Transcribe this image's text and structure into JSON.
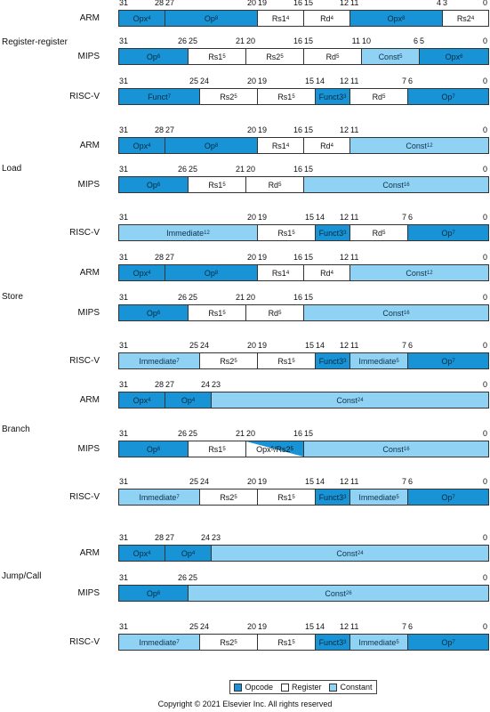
{
  "colors": {
    "opcode": "#1793d6",
    "register": "#ffffff",
    "constant": "#8fd2f4"
  },
  "groups": [
    {
      "name": "Register-register",
      "label_row": 0,
      "rows": [
        {
          "isa": "ARM",
          "bits": [
            31,
            28,
            27,
            20,
            19,
            16,
            15,
            12,
            11,
            4,
            3,
            0
          ],
          "fields": [
            {
              "from": 31,
              "to": 28,
              "name": "Opx",
              "sup": "4",
              "type": "opcode"
            },
            {
              "from": 27,
              "to": 20,
              "name": "Op",
              "sup": "8",
              "type": "opcode"
            },
            {
              "from": 19,
              "to": 16,
              "name": "Rs1",
              "sup": "4",
              "type": "register"
            },
            {
              "from": 15,
              "to": 12,
              "name": "Rd",
              "sup": "4",
              "type": "register"
            },
            {
              "from": 11,
              "to": 4,
              "name": "Opx",
              "sup": "8",
              "type": "opcode"
            },
            {
              "from": 3,
              "to": 0,
              "name": "Rs2",
              "sup": "4",
              "type": "register"
            }
          ]
        },
        {
          "isa": "MIPS",
          "bits": [
            31,
            26,
            25,
            21,
            20,
            16,
            15,
            11,
            10,
            6,
            5,
            0
          ],
          "fields": [
            {
              "from": 31,
              "to": 26,
              "name": "Op",
              "sup": "6",
              "type": "opcode"
            },
            {
              "from": 25,
              "to": 21,
              "name": "Rs1",
              "sup": "5",
              "type": "register"
            },
            {
              "from": 20,
              "to": 16,
              "name": "Rs2",
              "sup": "5",
              "type": "register"
            },
            {
              "from": 15,
              "to": 11,
              "name": "Rd",
              "sup": "5",
              "type": "register"
            },
            {
              "from": 10,
              "to": 6,
              "name": "Const",
              "sup": "5",
              "type": "constant"
            },
            {
              "from": 5,
              "to": 0,
              "name": "Opx",
              "sup": "6",
              "type": "opcode"
            }
          ]
        },
        {
          "isa": "RISC-V",
          "bits": [
            31,
            25,
            24,
            20,
            19,
            15,
            14,
            12,
            11,
            7,
            6,
            0
          ],
          "fields": [
            {
              "from": 31,
              "to": 25,
              "name": "Funct",
              "sup": "7",
              "type": "opcode"
            },
            {
              "from": 24,
              "to": 20,
              "name": "Rs2",
              "sup": "5",
              "type": "register"
            },
            {
              "from": 19,
              "to": 15,
              "name": "Rs1",
              "sup": "5",
              "type": "register"
            },
            {
              "from": 14,
              "to": 12,
              "name": "Funct3",
              "sup": "3",
              "type": "opcode"
            },
            {
              "from": 11,
              "to": 7,
              "name": "Rd",
              "sup": "5",
              "type": "register"
            },
            {
              "from": 6,
              "to": 0,
              "name": "Op",
              "sup": "7",
              "type": "opcode"
            }
          ]
        }
      ]
    },
    {
      "name": "Load",
      "label_row": 1,
      "rows": [
        {
          "isa": "ARM",
          "bits": [
            31,
            28,
            27,
            20,
            19,
            16,
            15,
            12,
            11,
            0
          ],
          "fields": [
            {
              "from": 31,
              "to": 28,
              "name": "Opx",
              "sup": "4",
              "type": "opcode"
            },
            {
              "from": 27,
              "to": 20,
              "name": "Op",
              "sup": "8",
              "type": "opcode"
            },
            {
              "from": 19,
              "to": 16,
              "name": "Rs1",
              "sup": "4",
              "type": "register"
            },
            {
              "from": 15,
              "to": 12,
              "name": "Rd",
              "sup": "4",
              "type": "register"
            },
            {
              "from": 11,
              "to": 0,
              "name": "Const",
              "sup": "12",
              "type": "constant"
            }
          ]
        },
        {
          "isa": "MIPS",
          "bits": [
            31,
            26,
            25,
            21,
            20,
            16,
            15,
            0
          ],
          "fields": [
            {
              "from": 31,
              "to": 26,
              "name": "Op",
              "sup": "6",
              "type": "opcode"
            },
            {
              "from": 25,
              "to": 21,
              "name": "Rs1",
              "sup": "5",
              "type": "register"
            },
            {
              "from": 20,
              "to": 16,
              "name": "Rd",
              "sup": "5",
              "type": "register"
            },
            {
              "from": 15,
              "to": 0,
              "name": "Const",
              "sup": "16",
              "type": "constant"
            }
          ]
        },
        {
          "isa": "RISC-V",
          "bits": [
            31,
            20,
            19,
            15,
            14,
            12,
            11,
            7,
            6,
            0
          ],
          "fields": [
            {
              "from": 31,
              "to": 20,
              "name": "Immediate",
              "sup": "12",
              "type": "constant"
            },
            {
              "from": 19,
              "to": 15,
              "name": "Rs1",
              "sup": "5",
              "type": "register"
            },
            {
              "from": 14,
              "to": 12,
              "name": "Funct3",
              "sup": "3",
              "type": "opcode"
            },
            {
              "from": 11,
              "to": 7,
              "name": "Rd",
              "sup": "5",
              "type": "register"
            },
            {
              "from": 6,
              "to": 0,
              "name": "Op",
              "sup": "7",
              "type": "opcode"
            }
          ]
        }
      ]
    },
    {
      "name": "Store",
      "label_row": 1,
      "rows": [
        {
          "isa": "ARM",
          "bits": [
            31,
            28,
            27,
            20,
            19,
            16,
            15,
            12,
            11,
            0
          ],
          "fields": [
            {
              "from": 31,
              "to": 28,
              "name": "Opx",
              "sup": "4",
              "type": "opcode"
            },
            {
              "from": 27,
              "to": 20,
              "name": "Op",
              "sup": "8",
              "type": "opcode"
            },
            {
              "from": 19,
              "to": 16,
              "name": "Rs1",
              "sup": "4",
              "type": "register"
            },
            {
              "from": 15,
              "to": 12,
              "name": "Rd",
              "sup": "4",
              "type": "register"
            },
            {
              "from": 11,
              "to": 0,
              "name": "Const",
              "sup": "12",
              "type": "constant"
            }
          ]
        },
        {
          "isa": "MIPS",
          "bits": [
            31,
            26,
            25,
            21,
            20,
            16,
            15,
            0
          ],
          "fields": [
            {
              "from": 31,
              "to": 26,
              "name": "Op",
              "sup": "6",
              "type": "opcode"
            },
            {
              "from": 25,
              "to": 21,
              "name": "Rs1",
              "sup": "5",
              "type": "register"
            },
            {
              "from": 20,
              "to": 16,
              "name": "Rd",
              "sup": "5",
              "type": "register"
            },
            {
              "from": 15,
              "to": 0,
              "name": "Const",
              "sup": "16",
              "type": "constant"
            }
          ]
        },
        {
          "isa": "RISC-V",
          "bits": [
            31,
            25,
            24,
            20,
            19,
            15,
            14,
            12,
            11,
            7,
            6,
            0
          ],
          "fields": [
            {
              "from": 31,
              "to": 25,
              "name": "Immediate",
              "sup": "7",
              "type": "constant"
            },
            {
              "from": 24,
              "to": 20,
              "name": "Rs2",
              "sup": "5",
              "type": "register"
            },
            {
              "from": 19,
              "to": 15,
              "name": "Rs1",
              "sup": "5",
              "type": "register"
            },
            {
              "from": 14,
              "to": 12,
              "name": "Funct3",
              "sup": "3",
              "type": "opcode"
            },
            {
              "from": 11,
              "to": 7,
              "name": "Immediate",
              "sup": "5",
              "type": "constant"
            },
            {
              "from": 6,
              "to": 0,
              "name": "Op",
              "sup": "7",
              "type": "opcode"
            }
          ]
        }
      ]
    },
    {
      "name": "Branch",
      "label_row": 1,
      "rows": [
        {
          "isa": "ARM",
          "bits": [
            31,
            28,
            27,
            24,
            23,
            0
          ],
          "fields": [
            {
              "from": 31,
              "to": 28,
              "name": "Opx",
              "sup": "4",
              "type": "opcode"
            },
            {
              "from": 27,
              "to": 24,
              "name": "Op",
              "sup": "4",
              "type": "opcode"
            },
            {
              "from": 23,
              "to": 0,
              "name": "Const",
              "sup": "24",
              "type": "constant"
            }
          ]
        },
        {
          "isa": "MIPS",
          "bits": [
            31,
            26,
            25,
            21,
            20,
            16,
            15,
            0
          ],
          "fields": [
            {
              "from": 31,
              "to": 26,
              "name": "Op",
              "sup": "6",
              "type": "opcode"
            },
            {
              "from": 25,
              "to": 21,
              "name": "Rs1",
              "sup": "5",
              "type": "register"
            },
            {
              "from": 20,
              "to": 16,
              "name": "Opx",
              "sup": "5",
              "name2": "/Rs2",
              "sup2": "5",
              "type": "split"
            },
            {
              "from": 15,
              "to": 0,
              "name": "Const",
              "sup": "16",
              "type": "constant"
            }
          ]
        },
        {
          "isa": "RISC-V",
          "bits": [
            31,
            25,
            24,
            20,
            19,
            15,
            14,
            12,
            11,
            7,
            6,
            0
          ],
          "fields": [
            {
              "from": 31,
              "to": 25,
              "name": "Immediate",
              "sup": "7",
              "type": "constant"
            },
            {
              "from": 24,
              "to": 20,
              "name": "Rs2",
              "sup": "5",
              "type": "register"
            },
            {
              "from": 19,
              "to": 15,
              "name": "Rs1",
              "sup": "5",
              "type": "register"
            },
            {
              "from": 14,
              "to": 12,
              "name": "Funct3",
              "sup": "3",
              "type": "opcode"
            },
            {
              "from": 11,
              "to": 7,
              "name": "Immediate",
              "sup": "5",
              "type": "constant"
            },
            {
              "from": 6,
              "to": 0,
              "name": "Op",
              "sup": "7",
              "type": "opcode"
            }
          ]
        }
      ]
    },
    {
      "name": "Jump/Call",
      "label_row": 1,
      "rows": [
        {
          "isa": "ARM",
          "bits": [
            31,
            28,
            27,
            24,
            23,
            0
          ],
          "fields": [
            {
              "from": 31,
              "to": 28,
              "name": "Opx",
              "sup": "4",
              "type": "opcode"
            },
            {
              "from": 27,
              "to": 24,
              "name": "Op",
              "sup": "4",
              "type": "opcode"
            },
            {
              "from": 23,
              "to": 0,
              "name": "Const",
              "sup": "24",
              "type": "constant"
            }
          ]
        },
        {
          "isa": "MIPS",
          "bits": [
            31,
            26,
            25,
            0
          ],
          "fields": [
            {
              "from": 31,
              "to": 26,
              "name": "Op",
              "sup": "6",
              "type": "opcode"
            },
            {
              "from": 25,
              "to": 0,
              "name": "Const",
              "sup": "26",
              "type": "constant"
            }
          ]
        },
        {
          "isa": "RISC-V",
          "bits": [
            31,
            25,
            24,
            20,
            19,
            15,
            14,
            12,
            11,
            7,
            6,
            0
          ],
          "fields": [
            {
              "from": 31,
              "to": 25,
              "name": "Immediate",
              "sup": "7",
              "type": "constant"
            },
            {
              "from": 24,
              "to": 20,
              "name": "Rs2",
              "sup": "5",
              "type": "register"
            },
            {
              "from": 19,
              "to": 15,
              "name": "Rs1",
              "sup": "5",
              "type": "register"
            },
            {
              "from": 14,
              "to": 12,
              "name": "Funct3",
              "sup": "3",
              "type": "opcode"
            },
            {
              "from": 11,
              "to": 7,
              "name": "Immediate",
              "sup": "5",
              "type": "constant"
            },
            {
              "from": 6,
              "to": 0,
              "name": "Op",
              "sup": "7",
              "type": "opcode"
            }
          ]
        }
      ]
    }
  ],
  "legend": [
    {
      "label": "Opcode",
      "type": "opcode"
    },
    {
      "label": "Register",
      "type": "register"
    },
    {
      "label": "Constant",
      "type": "constant"
    }
  ],
  "copyright": "Copyright © 2021 Elsevier Inc. All rights reserved"
}
